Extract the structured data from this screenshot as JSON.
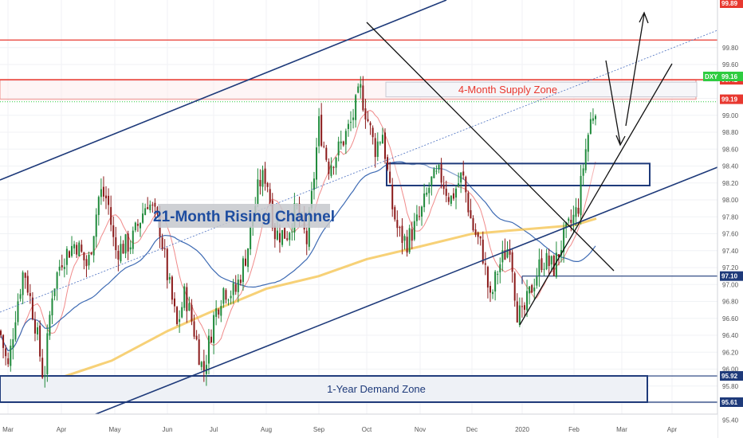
{
  "chart_data": {
    "type": "candlestick",
    "symbol": "DXY",
    "ylim": [
      95.4,
      99.89
    ],
    "price_ticks": [
      95.4,
      95.6,
      95.8,
      96.0,
      96.2,
      96.4,
      96.6,
      96.8,
      97.0,
      97.2,
      97.4,
      97.6,
      97.8,
      98.0,
      98.2,
      98.4,
      98.6,
      98.8,
      99.0,
      99.2,
      99.4,
      99.6,
      99.8
    ],
    "price_tick_labels": [
      "95.40",
      "95.60",
      "95.80",
      "96.00",
      "96.20",
      "96.40",
      "96.60",
      "96.80",
      "97.00",
      "97.20",
      "97.40",
      "97.60",
      "97.80",
      "98.00",
      "98.20",
      "98.40",
      "98.60",
      "98.80",
      "99.00",
      "99.20",
      "99.40",
      "99.60",
      "99.80"
    ],
    "time_ticks": [
      "Mar",
      "Apr",
      "May",
      "Jun",
      "Jul",
      "Aug",
      "Sep",
      "Oct",
      "Nov",
      "Dec",
      "2020",
      "Feb",
      "Mar",
      "Apr"
    ],
    "price_tags": [
      {
        "label": "99.89",
        "value": 99.89,
        "color": "#e8382f"
      },
      {
        "label": "99.42",
        "value": 99.42,
        "color": "#e8382f"
      },
      {
        "label": "99.19",
        "value": 99.19,
        "color": "#e8382f"
      },
      {
        "label": "99.16",
        "value": 99.16,
        "color": "#2ecc40",
        "prefix": "DXY"
      },
      {
        "label": "97.10",
        "value": 97.1,
        "color": "#1e3a7a"
      },
      {
        "label": "95.92",
        "value": 95.92,
        "color": "#1e3a7a"
      },
      {
        "label": "95.61",
        "value": 95.61,
        "color": "#1e3a7a"
      }
    ],
    "zones": [
      {
        "name": "supply",
        "label": "4-Month Supply Zone",
        "top": 99.42,
        "bottom": 99.19,
        "color": "#e8382f"
      },
      {
        "name": "demand",
        "label": "1-Year Demand Zone",
        "top": 95.92,
        "bottom": 95.61,
        "color": "#1e3a7a"
      },
      {
        "name": "mid-box",
        "label": "",
        "top": 98.43,
        "bottom": 98.17,
        "color": "#1e3a7a"
      }
    ],
    "annotations": [
      {
        "text": "21-Month Rising Channel"
      }
    ],
    "key_prices": [
      {
        "date": "Mar",
        "open": 95.9,
        "close": 96.1,
        "high": 96.3,
        "low": 95.8
      },
      {
        "date": "Apr",
        "open": 96.8,
        "close": 97.2,
        "high": 97.5,
        "low": 96.6
      },
      {
        "date": "May",
        "open": 97.5,
        "close": 97.8,
        "high": 98.3,
        "low": 97.2
      },
      {
        "date": "Jun",
        "open": 97.7,
        "close": 96.3,
        "high": 98.0,
        "low": 96.0
      },
      {
        "date": "Jul",
        "open": 96.2,
        "close": 96.9,
        "high": 97.4,
        "low": 95.9
      },
      {
        "date": "Aug",
        "open": 97.6,
        "close": 98.2,
        "high": 98.5,
        "low": 97.4
      },
      {
        "date": "Sep",
        "open": 98.3,
        "close": 99.0,
        "high": 99.2,
        "low": 97.8
      },
      {
        "date": "Oct",
        "open": 99.1,
        "close": 98.3,
        "high": 99.6,
        "low": 97.9
      },
      {
        "date": "Nov",
        "open": 97.4,
        "close": 98.3,
        "high": 98.4,
        "low": 97.1
      },
      {
        "date": "Dec",
        "open": 98.2,
        "close": 97.2,
        "high": 98.4,
        "low": 96.7
      },
      {
        "date": "2020",
        "open": 96.6,
        "close": 97.4,
        "high": 97.5,
        "low": 96.4
      },
      {
        "date": "Feb",
        "open": 97.9,
        "close": 99.16,
        "high": 99.19,
        "low": 97.8
      }
    ]
  }
}
